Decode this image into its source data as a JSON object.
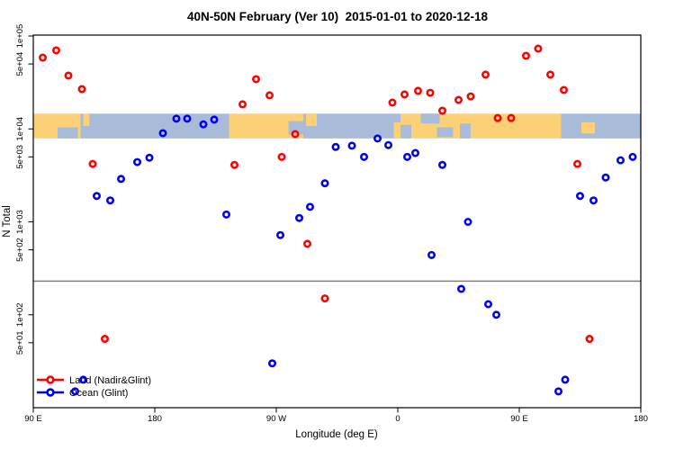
{
  "chart_data": {
    "type": "scatter",
    "title": "40N-50N February (Ver 10)  2015-01-01 to 2020-12-18",
    "xlabel": "Longitude (deg E)",
    "ylabel": "N Total",
    "x_axis": {
      "domain": [
        90,
        540
      ],
      "ticks": [
        {
          "label": "90 E",
          "value": 90
        },
        {
          "label": "180",
          "value": 180
        },
        {
          "label": "90 W",
          "value": 270
        },
        {
          "label": "0",
          "value": 360
        },
        {
          "label": "90 E",
          "value": 450
        },
        {
          "label": "180",
          "value": 540
        }
      ]
    },
    "y_axis": {
      "scale": "log",
      "domain": [
        100000,
        10
      ],
      "ticks": [
        {
          "label": "1e+05",
          "value": 100000
        },
        {
          "label": "5e+04",
          "value": 50000
        },
        {
          "label": "1e+04",
          "value": 10000
        },
        {
          "label": "5e+03",
          "value": 5000
        },
        {
          "label": "1e+03",
          "value": 1000
        },
        {
          "label": "5e+02",
          "value": 500
        },
        {
          "label": "1e+02",
          "value": 100
        },
        {
          "label": "5e+01",
          "value": 50
        }
      ]
    },
    "threshold_line": {
      "value": 230,
      "color": "#808080"
    },
    "map_band": {
      "n_top": 14600,
      "n_bottom": 7900,
      "land_color": "#FBD077",
      "ocean_color": "#A8BCDA",
      "segments": [
        {
          "type": "land",
          "from": 90,
          "to": 125
        },
        {
          "type": "ocean",
          "from": 125,
          "to": 235
        },
        {
          "type": "land",
          "from": 235,
          "to": 290
        },
        {
          "type": "ocean",
          "from": 290,
          "to": 357
        },
        {
          "type": "land",
          "from": 357,
          "to": 481
        },
        {
          "type": "ocean",
          "from": 481,
          "to": 540
        }
      ],
      "details": [
        {
          "type": "ocean",
          "from": 108,
          "to": 123,
          "v0": 0.55,
          "v1": 1
        },
        {
          "type": "land",
          "from": 127,
          "to": 131.5,
          "v0": 0,
          "v1": 0.5
        },
        {
          "type": "ocean",
          "from": 279,
          "to": 292,
          "v0": 0.3,
          "v1": 0.85
        },
        {
          "type": "land",
          "from": 292,
          "to": 300,
          "v0": 0,
          "v1": 0.5
        },
        {
          "type": "ocean",
          "from": 357,
          "to": 362,
          "v0": 0,
          "v1": 0.35
        },
        {
          "type": "ocean",
          "from": 362,
          "to": 370,
          "v0": 0.45,
          "v1": 1
        },
        {
          "type": "ocean",
          "from": 377,
          "to": 391,
          "v0": 0,
          "v1": 0.4
        },
        {
          "type": "ocean",
          "from": 389,
          "to": 401,
          "v0": 0.55,
          "v1": 0.95
        },
        {
          "type": "ocean",
          "from": 406,
          "to": 414,
          "v0": 0.4,
          "v1": 1
        },
        {
          "type": "land",
          "from": 496,
          "to": 506,
          "v0": 0.35,
          "v1": 0.8
        }
      ]
    },
    "series": [
      {
        "name": "Land (Nadir&Glint)",
        "color": "#FF0000",
        "points": [
          {
            "lon": 97,
            "n": 58500
          },
          {
            "lon": 107,
            "n": 70000
          },
          {
            "lon": 116,
            "n": 37500
          },
          {
            "lon": 126,
            "n": 26800
          },
          {
            "lon": 134,
            "n": 4200
          },
          {
            "lon": 143,
            "n": 55
          },
          {
            "lon": 239,
            "n": 4100
          },
          {
            "lon": 245,
            "n": 18400
          },
          {
            "lon": 255,
            "n": 34300
          },
          {
            "lon": 265,
            "n": 23000
          },
          {
            "lon": 274,
            "n": 5000
          },
          {
            "lon": 284,
            "n": 8800
          },
          {
            "lon": 293,
            "n": 580
          },
          {
            "lon": 306,
            "n": 150
          },
          {
            "lon": 356,
            "n": 19200
          },
          {
            "lon": 365,
            "n": 23500
          },
          {
            "lon": 375,
            "n": 25700
          },
          {
            "lon": 384,
            "n": 24500
          },
          {
            "lon": 393,
            "n": 15700
          },
          {
            "lon": 405,
            "n": 20500
          },
          {
            "lon": 414,
            "n": 22400
          },
          {
            "lon": 425,
            "n": 38400
          },
          {
            "lon": 434,
            "n": 13100
          },
          {
            "lon": 444,
            "n": 13100
          },
          {
            "lon": 455,
            "n": 61200
          },
          {
            "lon": 464,
            "n": 73100
          },
          {
            "lon": 473,
            "n": 38400
          },
          {
            "lon": 483,
            "n": 26200
          },
          {
            "lon": 493,
            "n": 4200
          },
          {
            "lon": 502,
            "n": 55
          }
        ]
      },
      {
        "name": "Ocean (Glint)",
        "color": "#0000EE",
        "points": [
          {
            "lon": 121,
            "n": 15
          },
          {
            "lon": 127,
            "n": 20
          },
          {
            "lon": 137,
            "n": 1900
          },
          {
            "lon": 147,
            "n": 1700
          },
          {
            "lon": 155,
            "n": 2900
          },
          {
            "lon": 167,
            "n": 4400
          },
          {
            "lon": 176,
            "n": 4900
          },
          {
            "lon": 186,
            "n": 9000
          },
          {
            "lon": 196,
            "n": 12900
          },
          {
            "lon": 204,
            "n": 12900
          },
          {
            "lon": 216,
            "n": 11200
          },
          {
            "lon": 224,
            "n": 12600
          },
          {
            "lon": 233,
            "n": 1200
          },
          {
            "lon": 267,
            "n": 30
          },
          {
            "lon": 273,
            "n": 720
          },
          {
            "lon": 287,
            "n": 1100
          },
          {
            "lon": 295,
            "n": 1450
          },
          {
            "lon": 306,
            "n": 2600
          },
          {
            "lon": 314,
            "n": 6400
          },
          {
            "lon": 326,
            "n": 6600
          },
          {
            "lon": 335,
            "n": 5000
          },
          {
            "lon": 345,
            "n": 7900
          },
          {
            "lon": 353,
            "n": 6700
          },
          {
            "lon": 367,
            "n": 5000
          },
          {
            "lon": 373,
            "n": 5500
          },
          {
            "lon": 385,
            "n": 440
          },
          {
            "lon": 393,
            "n": 4100
          },
          {
            "lon": 407,
            "n": 190
          },
          {
            "lon": 412,
            "n": 1000
          },
          {
            "lon": 427,
            "n": 130
          },
          {
            "lon": 433,
            "n": 100
          },
          {
            "lon": 479,
            "n": 15
          },
          {
            "lon": 484,
            "n": 20
          },
          {
            "lon": 495,
            "n": 1900
          },
          {
            "lon": 505,
            "n": 1700
          },
          {
            "lon": 514,
            "n": 3000
          },
          {
            "lon": 525,
            "n": 4600
          },
          {
            "lon": 534,
            "n": 5000
          }
        ]
      }
    ],
    "legend": {
      "position": "bottom-left"
    }
  }
}
